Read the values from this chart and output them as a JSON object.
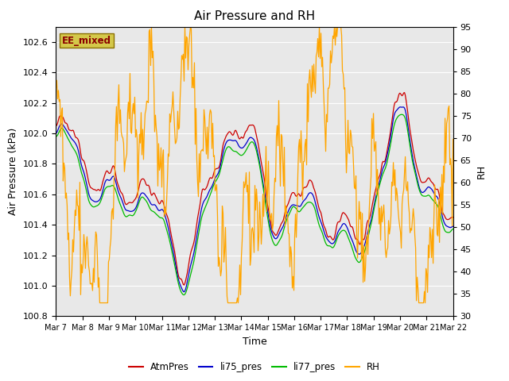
{
  "title": "Air Pressure and RH",
  "xlabel": "Time",
  "ylabel_left": "Air Pressure (kPa)",
  "ylabel_right": "RH",
  "ylim_left": [
    100.8,
    102.7
  ],
  "ylim_right": [
    30,
    95
  ],
  "yticks_left": [
    100.8,
    101.0,
    101.2,
    101.4,
    101.6,
    101.8,
    102.0,
    102.2,
    102.4,
    102.6
  ],
  "yticks_right": [
    30,
    35,
    40,
    45,
    50,
    55,
    60,
    65,
    70,
    75,
    80,
    85,
    90,
    95
  ],
  "xtick_labels": [
    "Mar 7",
    "Mar 8",
    "Mar 9",
    "Mar 10",
    "Mar 11",
    "Mar 12",
    "Mar 13",
    "Mar 14",
    "Mar 15",
    "Mar 16",
    "Mar 17",
    "Mar 18",
    "Mar 19",
    "Mar 20",
    "Mar 21",
    "Mar 22"
  ],
  "text_box_label": "EE_mixed",
  "text_box_bg": "#d4c84a",
  "text_box_fg": "#8b0000",
  "text_box_edge": "#8b7000",
  "legend_entries": [
    "AtmPres",
    "li75_pres",
    "li77_pres",
    "RH"
  ],
  "line_colors": [
    "#cc0000",
    "#0000cc",
    "#00bb00",
    "#ffa500"
  ],
  "bg_color": "#e8e8e8",
  "fig_bg": "#ffffff",
  "grid_color": "#ffffff",
  "n_points": 500,
  "title_fontsize": 11,
  "label_fontsize": 9,
  "tick_fontsize": 8
}
